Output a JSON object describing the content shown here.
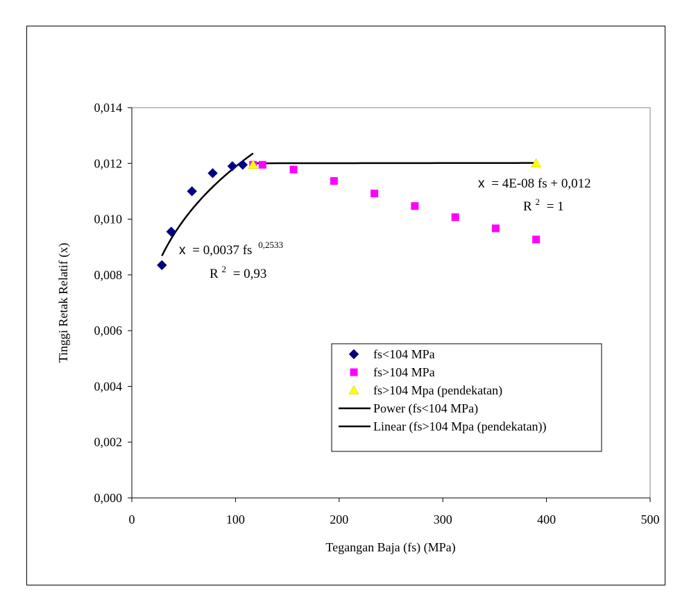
{
  "chart_data": {
    "type": "scatter",
    "title": "",
    "xlabel": "Tegangan Baja (fs) (MPa)",
    "ylabel": "Tinggi Retak Relatif (x)",
    "xlim": [
      0,
      500
    ],
    "ylim": [
      0,
      0.014
    ],
    "x_ticks": [
      0,
      100,
      200,
      300,
      400,
      500
    ],
    "y_ticks": [
      0,
      0.002,
      0.004,
      0.006,
      0.008,
      0.01,
      0.012,
      0.014
    ],
    "x_tick_labels": [
      "0",
      "100",
      "200",
      "300",
      "400",
      "500"
    ],
    "y_tick_labels": [
      "0,000",
      "0,002",
      "0,004",
      "0,006",
      "0,008",
      "0,010",
      "0,012",
      "0,014"
    ],
    "grid": false,
    "legend_position": "bottom-right",
    "series": [
      {
        "name": "fs<104 MPa",
        "marker": "diamond",
        "color": "#000080",
        "points": [
          [
            29,
            0.00835
          ],
          [
            38,
            0.00955
          ],
          [
            58,
            0.011
          ],
          [
            78,
            0.01165
          ],
          [
            97,
            0.0119
          ],
          [
            107,
            0.01195
          ]
        ]
      },
      {
        "name": "fs>104 MPa",
        "marker": "square",
        "color": "#ff00ff",
        "points": [
          [
            117,
            0.01195
          ],
          [
            126,
            0.01195
          ],
          [
            156,
            0.01178
          ],
          [
            195,
            0.01137
          ],
          [
            234,
            0.01092
          ],
          [
            273,
            0.01047
          ],
          [
            312,
            0.01007
          ],
          [
            351,
            0.00967
          ],
          [
            390,
            0.00927
          ]
        ]
      },
      {
        "name": "fs>104 Mpa (pendekatan)",
        "marker": "triangle",
        "color": "#ffff00",
        "points": [
          [
            117,
            0.01195
          ],
          [
            390,
            0.012
          ]
        ]
      },
      {
        "name": "Power (fs<104 MPa)",
        "type": "line",
        "color": "#000000",
        "equation": {
          "a": 0.0037,
          "b": 0.2533
        },
        "x_range": [
          29,
          117
        ]
      },
      {
        "name": "Linear (fs>104 Mpa (pendekatan))",
        "type": "line",
        "color": "#000000",
        "equation": {
          "slope": 4e-08,
          "intercept": 0.012
        },
        "x_range": [
          117,
          390
        ]
      }
    ],
    "annotations": {
      "power_eq_var": "x",
      "power_eq_main": "= 0,0037 fs",
      "power_eq_exp": "0,2533",
      "power_r2_base": "R",
      "power_r2_sup": "2",
      "power_r2_val": "= 0,93",
      "linear_eq_var": "x",
      "linear_eq_main": "= 4E-08 fs + 0,012",
      "linear_r2_base": "R",
      "linear_r2_sup": "2",
      "linear_r2_val": "= 1"
    }
  }
}
